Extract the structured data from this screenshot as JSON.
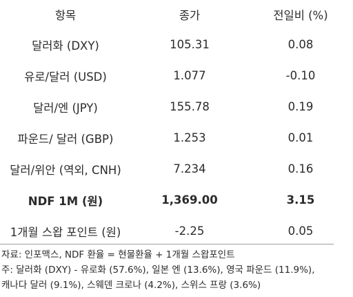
{
  "table": {
    "headers": [
      "항목",
      "종가",
      "전일비 (%)"
    ],
    "rows": [
      {
        "item": "달러화 (DXY)",
        "close": "105.31",
        "change": "0.08",
        "bold": false
      },
      {
        "item": "유로/달러 (USD)",
        "close": "1.077",
        "change": "-0.10",
        "bold": false
      },
      {
        "item": "달러/엔 (JPY)",
        "close": "155.78",
        "change": "0.19",
        "bold": false
      },
      {
        "item": "파운드/ 달러 (GBP)",
        "close": "1.253",
        "change": "0.01",
        "bold": false
      },
      {
        "item": "달러/위안 (역외, CNH)",
        "close": "7.234",
        "change": "0.16",
        "bold": false
      },
      {
        "item": "NDF 1M (원)",
        "close": "1,369.00",
        "change": "3.15",
        "bold": true
      },
      {
        "item": "1개월 스왑 포인트 (원)",
        "close": "-2.25",
        "change": "0.05",
        "bold": false
      }
    ]
  },
  "notes": {
    "source": "자료: 인포맥스, NDF 환율 = 현물환율 + 1개월 스왑포인트",
    "note_line1": "주: 달러화 (DXY) - 유로화 (57.6%), 일본 엔 (13.6%), 영국 파운드 (11.9%),",
    "note_line2": "캐나다 달러 (9.1%), 스웨덴 크로나 (4.2%), 스위스 프랑 (3.6%)"
  }
}
